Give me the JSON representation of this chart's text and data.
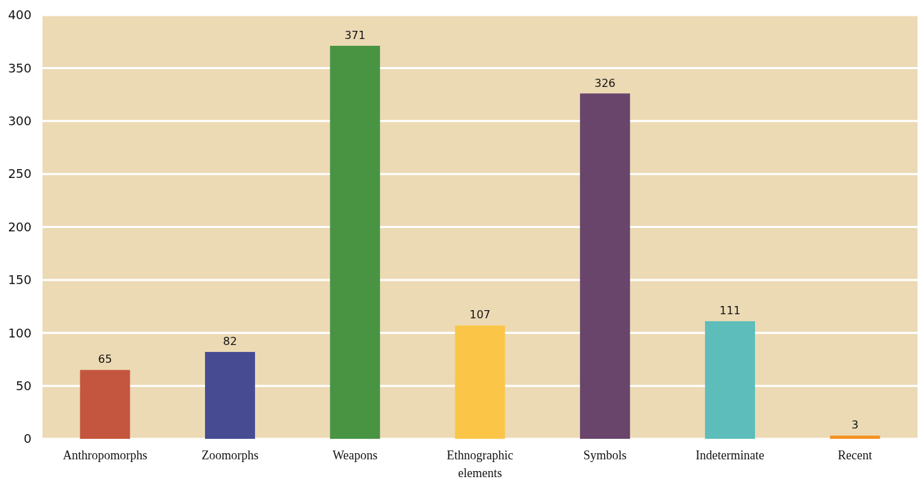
{
  "chart_data": {
    "type": "bar",
    "categories": [
      "Anthropomorphs",
      "Zoomorphs",
      "Weapons",
      "Ethnographic elements",
      "Symbols",
      "Indeterminate",
      "Recent"
    ],
    "values": [
      65,
      82,
      371,
      107,
      326,
      111,
      3
    ],
    "colors": [
      "#c4553f",
      "#464b92",
      "#489443",
      "#fbc548",
      "#69446b",
      "#5dbdba",
      "#f39220"
    ],
    "ylim": [
      0,
      400
    ],
    "yticks": [
      0,
      50,
      100,
      150,
      200,
      250,
      300,
      350,
      400
    ],
    "grid": "y",
    "data_labels": true
  }
}
